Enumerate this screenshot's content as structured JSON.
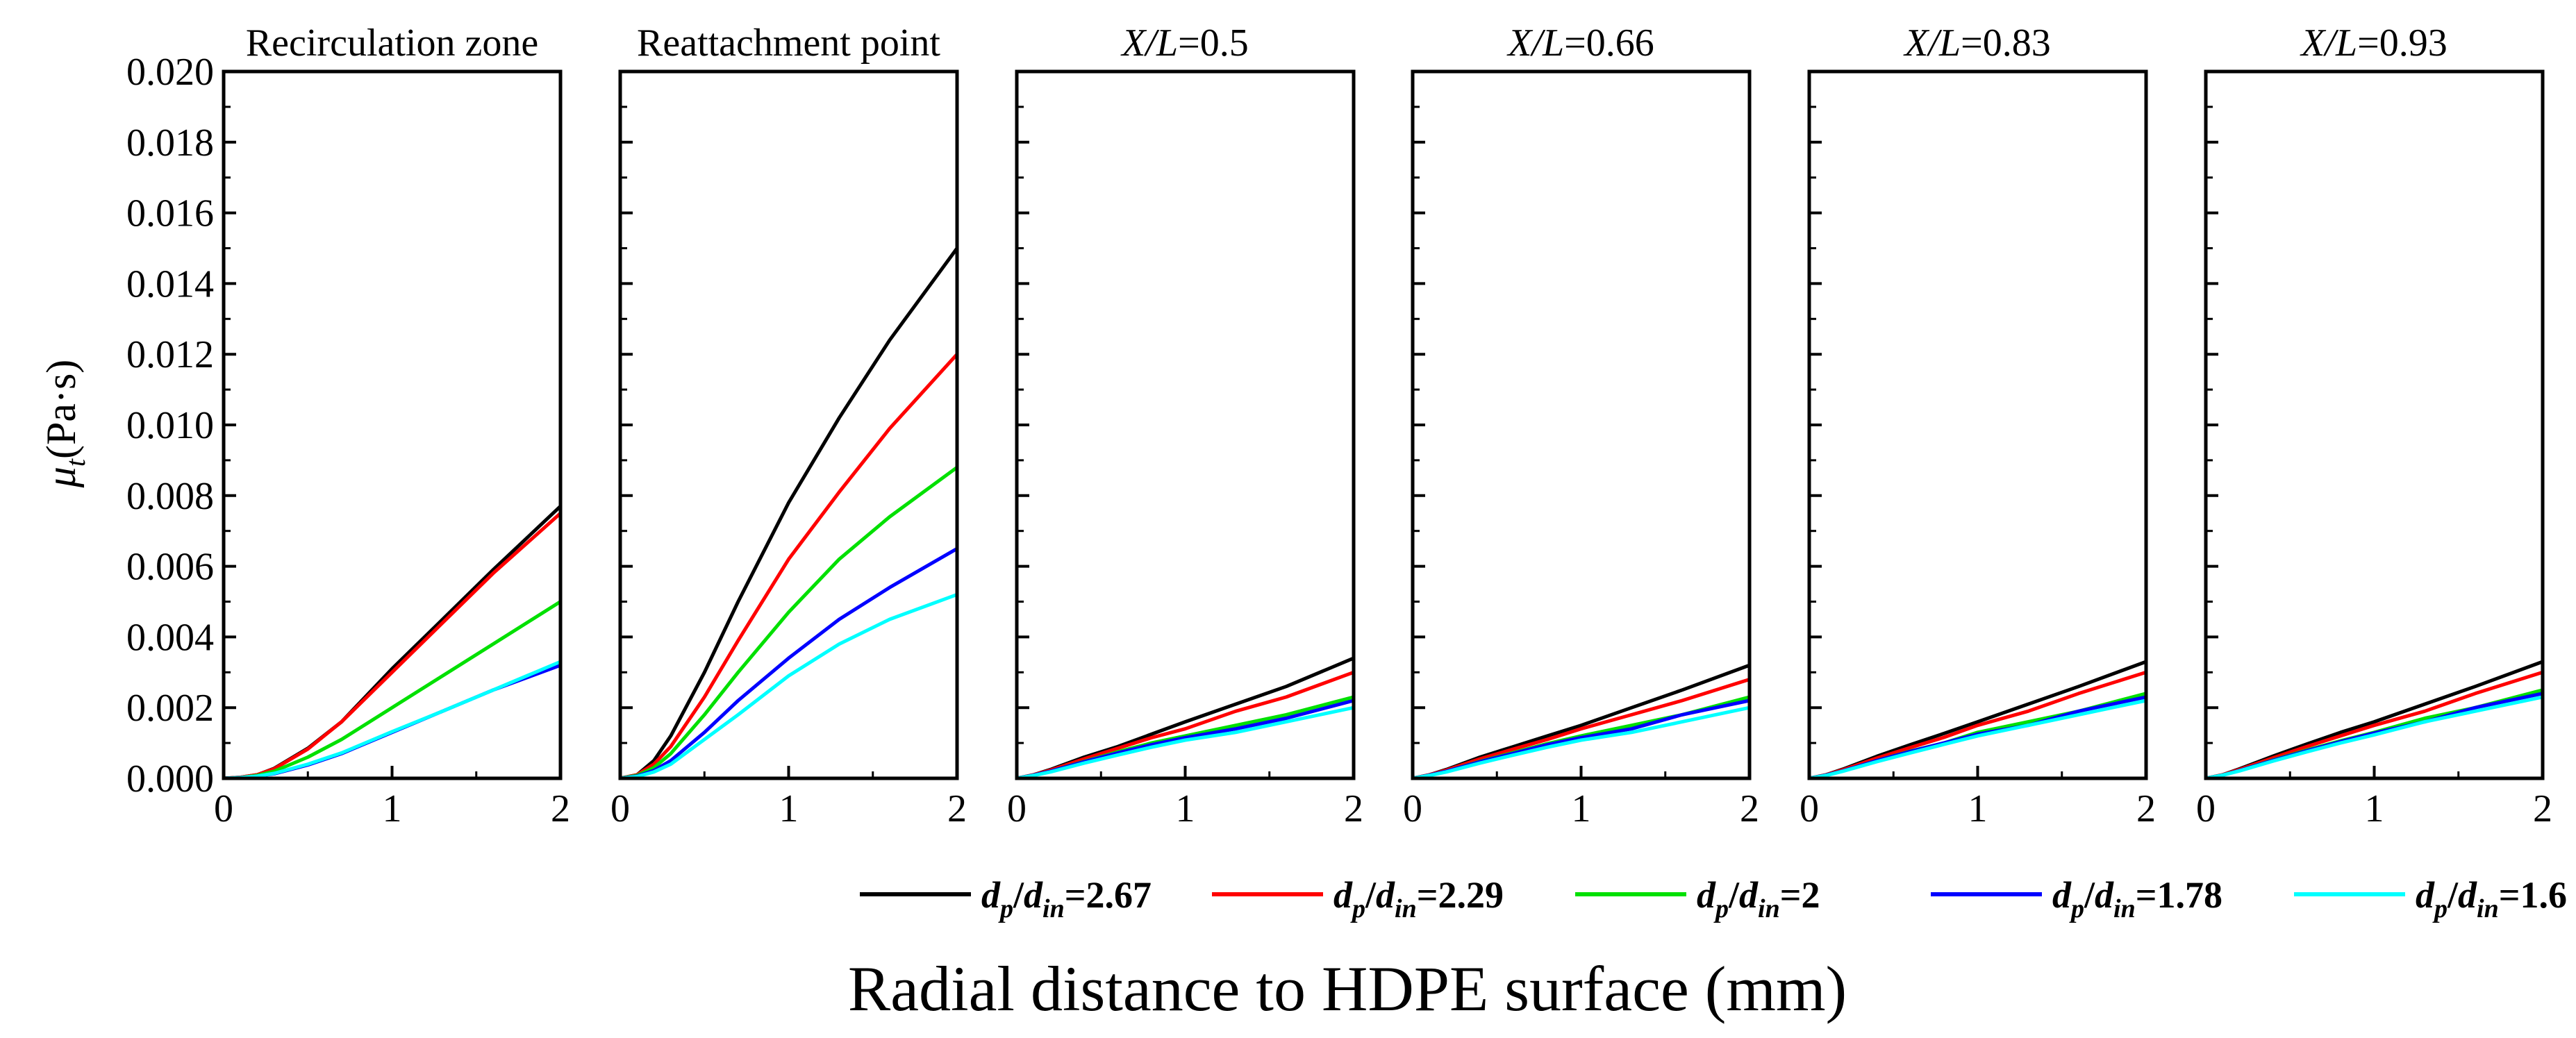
{
  "chart_data": {
    "type": "line",
    "xlabel": "Radial distance to HDPE surface (mm)",
    "ylabel": {
      "symbol": "μ",
      "subscript": "t",
      "units": "(Pa·s)"
    },
    "xlim": [
      0,
      2
    ],
    "ylim": [
      0,
      0.02
    ],
    "x_ticks": [
      "0",
      "1",
      "2"
    ],
    "y_ticks": [
      "0.000",
      "0.002",
      "0.004",
      "0.006",
      "0.008",
      "0.010",
      "0.012",
      "0.014",
      "0.016",
      "0.018",
      "0.020"
    ],
    "legend": [
      {
        "id": "s267",
        "color": "#000000",
        "var1": "d",
        "sub1": "p",
        "sep": "/",
        "var2": "d",
        "sub2": "in",
        "value": "=2.67"
      },
      {
        "id": "s229",
        "color": "#ff0000",
        "var1": "d",
        "sub1": "p",
        "sep": "/",
        "var2": "d",
        "sub2": "in",
        "value": "=2.29"
      },
      {
        "id": "s200",
        "color": "#00e000",
        "var1": "d",
        "sub1": "p",
        "sep": "/",
        "var2": "d",
        "sub2": "in",
        "value": "=2"
      },
      {
        "id": "s178",
        "color": "#0000ff",
        "var1": "d",
        "sub1": "p",
        "sep": "/",
        "var2": "d",
        "sub2": "in",
        "value": "=1.78"
      },
      {
        "id": "s160",
        "color": "#00ffff",
        "var1": "d",
        "sub1": "p",
        "sep": "/",
        "var2": "d",
        "sub2": "in",
        "value": "=1.6"
      }
    ],
    "panels": [
      {
        "title": {
          "italic": "",
          "rest": "Recirculation zone"
        },
        "x": [
          0,
          0.1,
          0.2,
          0.3,
          0.5,
          0.7,
          1.0,
          1.3,
          1.6,
          2.0
        ],
        "series": [
          {
            "id": "s267",
            "values": [
              0,
              3e-05,
              0.0001,
              0.00028,
              0.00085,
              0.0016,
              0.0031,
              0.0045,
              0.0059,
              0.0077
            ]
          },
          {
            "id": "s229",
            "values": [
              0,
              3e-05,
              0.0001,
              0.00027,
              0.00083,
              0.0016,
              0.003,
              0.0044,
              0.0058,
              0.0075
            ]
          },
          {
            "id": "s200",
            "values": [
              0,
              2e-05,
              8e-05,
              0.0002,
              0.0006,
              0.0011,
              0.002,
              0.0029,
              0.0038,
              0.005
            ]
          },
          {
            "id": "s178",
            "values": [
              0,
              2e-05,
              6e-05,
              0.00013,
              0.00038,
              0.0007,
              0.0013,
              0.0019,
              0.0025,
              0.0032
            ]
          },
          {
            "id": "s160",
            "values": [
              0,
              2e-05,
              6e-05,
              0.00014,
              0.0004,
              0.00072,
              0.00132,
              0.0019,
              0.0025,
              0.0033
            ]
          }
        ]
      },
      {
        "title": {
          "italic": "",
          "rest": "Reattachment point"
        },
        "x": [
          0,
          0.1,
          0.2,
          0.3,
          0.5,
          0.7,
          1.0,
          1.3,
          1.6,
          2.0
        ],
        "series": [
          {
            "id": "s267",
            "values": [
              0,
              0.0001,
              0.0005,
              0.0012,
              0.003,
              0.005,
              0.0078,
              0.0102,
              0.0124,
              0.015
            ]
          },
          {
            "id": "s229",
            "values": [
              0,
              0.0001,
              0.0004,
              0.0009,
              0.0023,
              0.0039,
              0.0062,
              0.0081,
              0.0099,
              0.012
            ]
          },
          {
            "id": "s200",
            "values": [
              0,
              8e-05,
              0.0003,
              0.0007,
              0.0018,
              0.003,
              0.0047,
              0.0062,
              0.0074,
              0.0088
            ]
          },
          {
            "id": "s178",
            "values": [
              0,
              6e-05,
              0.00022,
              0.0005,
              0.0013,
              0.0022,
              0.0034,
              0.0045,
              0.0054,
              0.0065
            ]
          },
          {
            "id": "s160",
            "values": [
              0,
              5e-05,
              0.00018,
              0.0004,
              0.0011,
              0.0018,
              0.0029,
              0.0038,
              0.0045,
              0.0052
            ]
          }
        ]
      },
      {
        "title": {
          "italic": "X/L",
          "rest": "=0.5"
        },
        "x": [
          0,
          0.1,
          0.2,
          0.4,
          0.6,
          0.8,
          1.0,
          1.3,
          1.6,
          2.0
        ],
        "series": [
          {
            "id": "s267",
            "values": [
              0,
              0.0001,
              0.00025,
              0.0006,
              0.0009,
              0.00125,
              0.0016,
              0.0021,
              0.0026,
              0.0034
            ]
          },
          {
            "id": "s229",
            "values": [
              0,
              0.0001,
              0.00023,
              0.00055,
              0.00085,
              0.00115,
              0.0014,
              0.0019,
              0.0023,
              0.003
            ]
          },
          {
            "id": "s200",
            "values": [
              0,
              9e-05,
              0.0002,
              0.00048,
              0.00075,
              0.001,
              0.0012,
              0.0015,
              0.0018,
              0.0023
            ]
          },
          {
            "id": "s178",
            "values": [
              0,
              9e-05,
              0.0002,
              0.00047,
              0.00072,
              0.00095,
              0.00115,
              0.0014,
              0.0017,
              0.0022
            ]
          },
          {
            "id": "s160",
            "values": [
              0,
              8e-05,
              0.00018,
              0.00043,
              0.00066,
              0.00088,
              0.00108,
              0.0013,
              0.0016,
              0.002
            ]
          }
        ]
      },
      {
        "title": {
          "italic": "X/L",
          "rest": "=0.66"
        },
        "x": [
          0,
          0.1,
          0.2,
          0.4,
          0.6,
          0.8,
          1.0,
          1.3,
          1.6,
          2.0
        ],
        "series": [
          {
            "id": "s267",
            "values": [
              0,
              0.0001,
              0.00025,
              0.0006,
              0.0009,
              0.0012,
              0.0015,
              0.002,
              0.0025,
              0.0032
            ]
          },
          {
            "id": "s229",
            "values": [
              0,
              0.0001,
              0.00023,
              0.00055,
              0.00083,
              0.0011,
              0.0014,
              0.0018,
              0.0022,
              0.0028
            ]
          },
          {
            "id": "s200",
            "values": [
              0,
              9e-05,
              0.0002,
              0.00048,
              0.00073,
              0.00098,
              0.0012,
              0.0015,
              0.0018,
              0.0023
            ]
          },
          {
            "id": "s178",
            "values": [
              0,
              9e-05,
              0.0002,
              0.00047,
              0.00071,
              0.00095,
              0.00115,
              0.0014,
              0.0018,
              0.0022
            ]
          },
          {
            "id": "s160",
            "values": [
              0,
              8e-05,
              0.00018,
              0.00043,
              0.00066,
              0.00088,
              0.00108,
              0.0013,
              0.0016,
              0.002
            ]
          }
        ]
      },
      {
        "title": {
          "italic": "X/L",
          "rest": "=0.83"
        },
        "x": [
          0,
          0.1,
          0.2,
          0.4,
          0.6,
          0.8,
          1.0,
          1.3,
          1.6,
          2.0
        ],
        "series": [
          {
            "id": "s267",
            "values": [
              0,
              0.0001,
              0.00026,
              0.00062,
              0.00095,
              0.00127,
              0.0016,
              0.0021,
              0.0026,
              0.0033
            ]
          },
          {
            "id": "s229",
            "values": [
              0,
              0.0001,
              0.00024,
              0.00057,
              0.00087,
              0.00116,
              0.0015,
              0.0019,
              0.0024,
              0.003
            ]
          },
          {
            "id": "s200",
            "values": [
              0,
              9e-05,
              0.00021,
              0.0005,
              0.00077,
              0.001,
              0.0013,
              0.0016,
              0.0019,
              0.0024
            ]
          },
          {
            "id": "s178",
            "values": [
              0,
              9e-05,
              0.00021,
              0.0005,
              0.00076,
              0.001,
              0.00125,
              0.0015,
              0.0019,
              0.0023
            ]
          },
          {
            "id": "s160",
            "values": [
              0,
              8e-05,
              0.0002,
              0.00047,
              0.00072,
              0.00096,
              0.0012,
              0.0015,
              0.0018,
              0.0022
            ]
          }
        ]
      },
      {
        "title": {
          "italic": "X/L",
          "rest": "=0.93"
        },
        "x": [
          0,
          0.1,
          0.2,
          0.4,
          0.6,
          0.8,
          1.0,
          1.3,
          1.6,
          2.0
        ],
        "series": [
          {
            "id": "s267",
            "values": [
              0,
              0.0001,
              0.00027,
              0.00063,
              0.00097,
              0.0013,
              0.0016,
              0.0021,
              0.0026,
              0.0033
            ]
          },
          {
            "id": "s229",
            "values": [
              0,
              0.0001,
              0.00025,
              0.00058,
              0.0009,
              0.0012,
              0.0015,
              0.0019,
              0.0024,
              0.003
            ]
          },
          {
            "id": "s200",
            "values": [
              0,
              9e-05,
              0.00022,
              0.00052,
              0.0008,
              0.00106,
              0.0013,
              0.0017,
              0.002,
              0.0025
            ]
          },
          {
            "id": "s178",
            "values": [
              0,
              9e-05,
              0.00022,
              0.00051,
              0.00078,
              0.00104,
              0.00128,
              0.0016,
              0.002,
              0.0024
            ]
          },
          {
            "id": "s160",
            "values": [
              0,
              9e-05,
              0.00021,
              0.00049,
              0.00075,
              0.001,
              0.00123,
              0.0016,
              0.0019,
              0.0023
            ]
          }
        ]
      }
    ]
  }
}
